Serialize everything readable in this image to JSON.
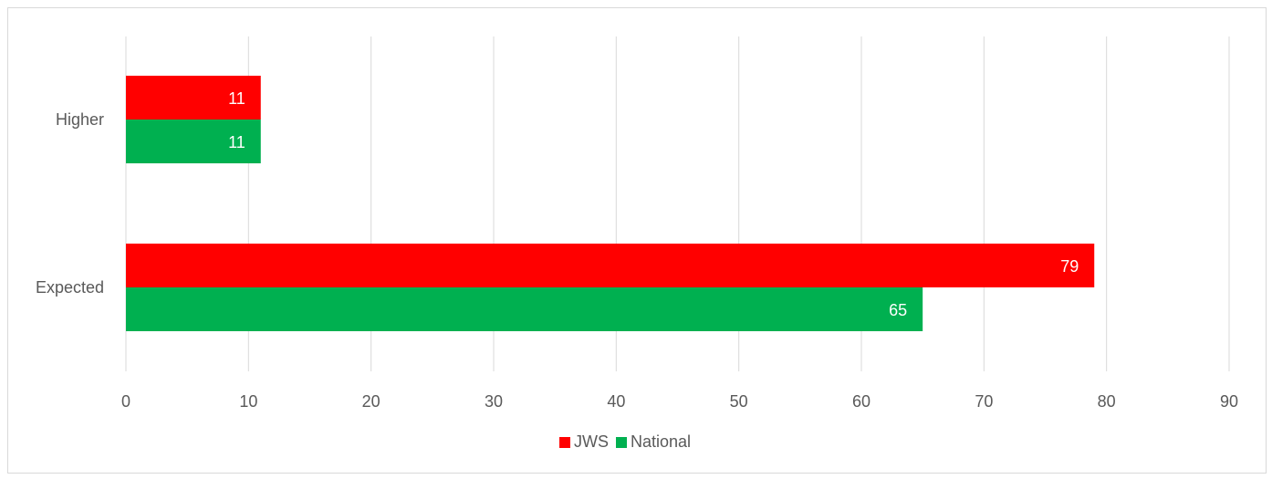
{
  "chart_data": {
    "type": "bar",
    "orientation": "horizontal",
    "title": "",
    "xlabel": "",
    "ylabel": "",
    "categories": [
      "Higher",
      "Expected"
    ],
    "series": [
      {
        "name": "JWS",
        "color": "#ff0000",
        "values": [
          11,
          79
        ]
      },
      {
        "name": "National",
        "color": "#00b050",
        "values": [
          11,
          65
        ]
      }
    ],
    "xlim": [
      0,
      90
    ],
    "xticks": [
      "0",
      "10",
      "20",
      "30",
      "40",
      "50",
      "60",
      "70",
      "80",
      "90"
    ],
    "grid": true,
    "data_labels": true,
    "legend": "bottom"
  }
}
